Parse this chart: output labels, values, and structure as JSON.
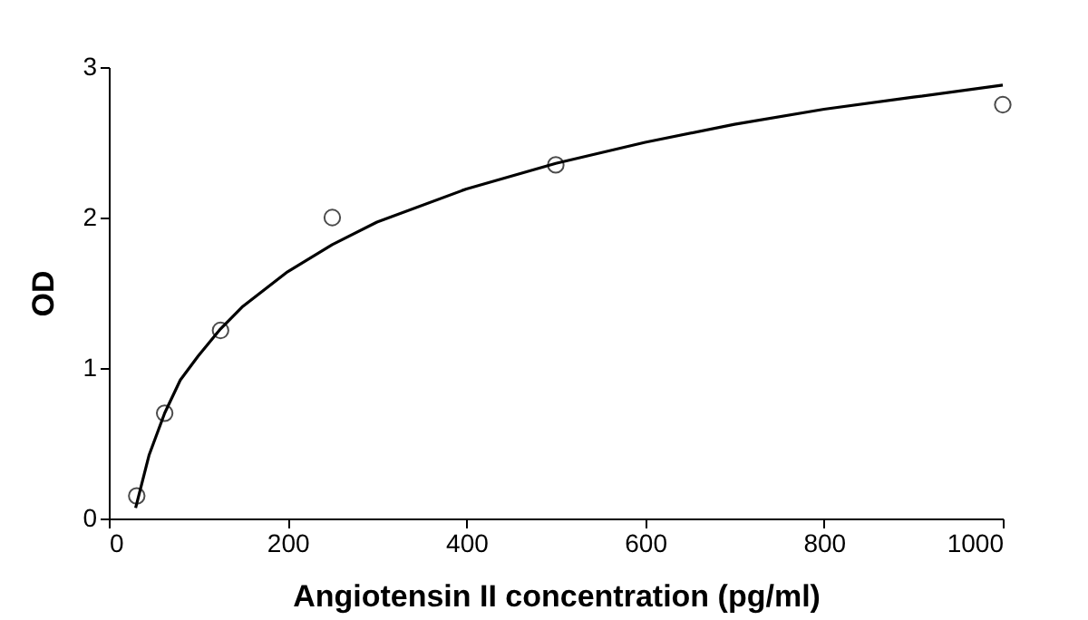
{
  "chart_data": {
    "type": "scatter",
    "xlabel": "Angiotensin II concentration (pg/ml)",
    "ylabel": "OD",
    "x": [
      31.25,
      62.5,
      125,
      250,
      500,
      1000
    ],
    "series": [
      {
        "color": "#000000",
        "marker": "circle",
        "values": [
          0.15,
          0.7,
          1.25,
          2.0,
          2.35,
          2.75
        ]
      },
      {
        "type": "line",
        "color": "#000000",
        "marker": "none",
        "line_style": "solid",
        "x": [
          30,
          45,
          62.5,
          80,
          100,
          125,
          150,
          200,
          250,
          300,
          400,
          500,
          600,
          700,
          800,
          900,
          1000
        ],
        "values": [
          0.07,
          0.42,
          0.7,
          0.92,
          1.08,
          1.26,
          1.41,
          1.64,
          1.82,
          1.97,
          2.19,
          2.36,
          2.5,
          2.62,
          2.72,
          2.8,
          2.88
        ]
      }
    ],
    "xlim": [
      0,
      1000
    ],
    "xticks": [
      0,
      200,
      400,
      600,
      800,
      1000
    ],
    "ylim": [
      0,
      3
    ],
    "yticks": [
      0,
      1,
      2,
      3
    ],
    "grid": false
  }
}
